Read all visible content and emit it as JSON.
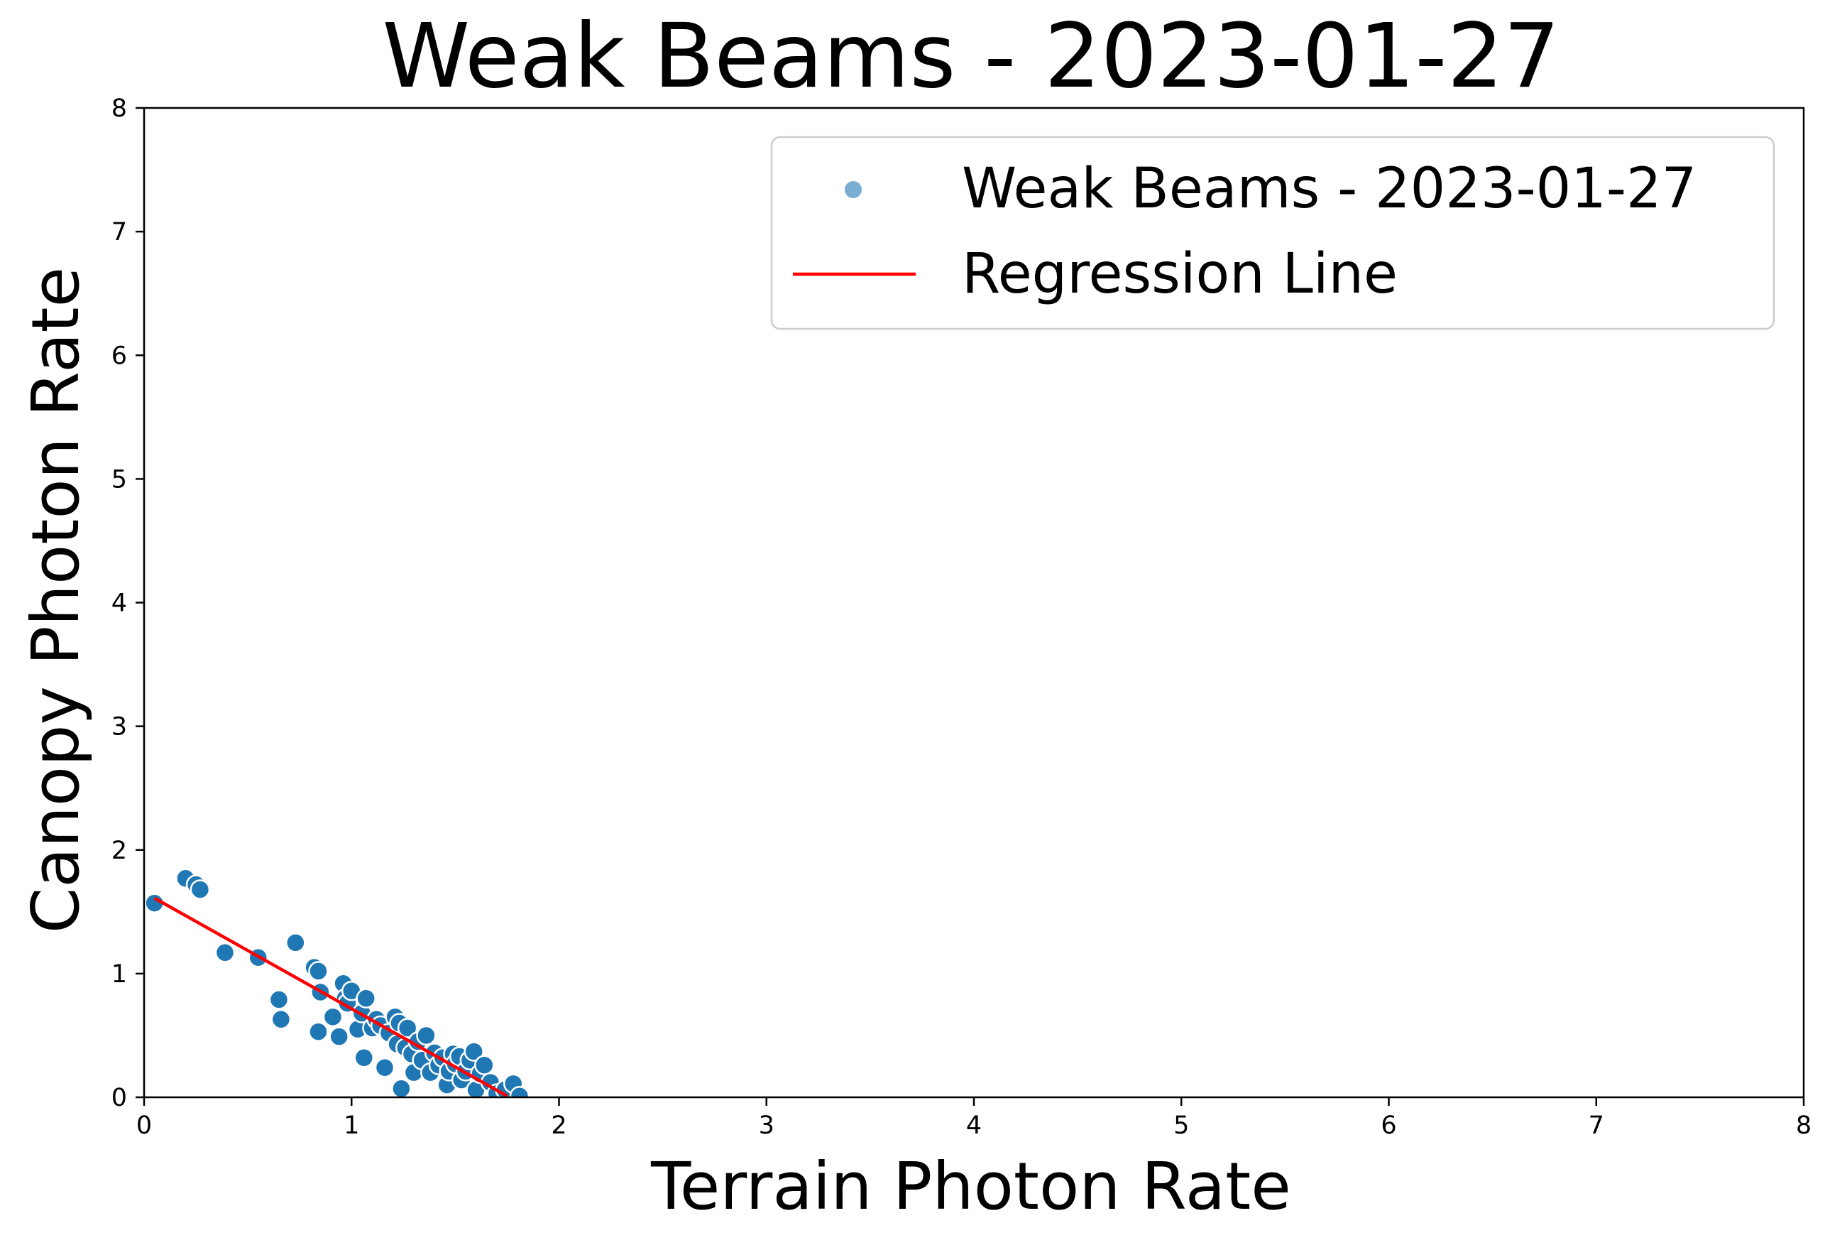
{
  "chart_data": {
    "type": "scatter",
    "title": "Weak Beams - 2023-01-27",
    "xlabel": "Terrain Photon Rate",
    "ylabel": "Canopy Photon Rate",
    "xlim": [
      0,
      8
    ],
    "ylim": [
      0,
      8
    ],
    "xticks": [
      "0",
      "1",
      "2",
      "3",
      "4",
      "5",
      "6",
      "7",
      "8"
    ],
    "yticks": [
      "0",
      "1",
      "2",
      "3",
      "4",
      "5",
      "6",
      "7",
      "8"
    ],
    "grid": false,
    "legend_position": "top-right",
    "colors": {
      "points": "#1f77b4",
      "regression": "#ff0000",
      "point_edge": "#ffffff"
    },
    "series": [
      {
        "name": "Weak Beams - 2023-01-27",
        "kind": "scatter",
        "points": [
          [
            0.05,
            1.57
          ],
          [
            0.2,
            1.77
          ],
          [
            0.25,
            1.72
          ],
          [
            0.27,
            1.68
          ],
          [
            0.39,
            1.17
          ],
          [
            0.55,
            1.13
          ],
          [
            0.65,
            0.79
          ],
          [
            0.66,
            0.63
          ],
          [
            0.73,
            1.25
          ],
          [
            0.82,
            1.05
          ],
          [
            0.84,
            1.02
          ],
          [
            0.84,
            0.53
          ],
          [
            0.85,
            0.85
          ],
          [
            0.91,
            0.65
          ],
          [
            0.94,
            0.49
          ],
          [
            0.96,
            0.92
          ],
          [
            0.97,
            0.8
          ],
          [
            0.98,
            0.76
          ],
          [
            1.0,
            0.86
          ],
          [
            1.03,
            0.55
          ],
          [
            1.05,
            0.68
          ],
          [
            1.06,
            0.32
          ],
          [
            1.07,
            0.8
          ],
          [
            1.1,
            0.56
          ],
          [
            1.12,
            0.63
          ],
          [
            1.14,
            0.58
          ],
          [
            1.16,
            0.24
          ],
          [
            1.18,
            0.52
          ],
          [
            1.21,
            0.65
          ],
          [
            1.22,
            0.43
          ],
          [
            1.23,
            0.6
          ],
          [
            1.24,
            0.07
          ],
          [
            1.26,
            0.4
          ],
          [
            1.27,
            0.56
          ],
          [
            1.29,
            0.35
          ],
          [
            1.3,
            0.2
          ],
          [
            1.32,
            0.45
          ],
          [
            1.34,
            0.3
          ],
          [
            1.36,
            0.5
          ],
          [
            1.38,
            0.2
          ],
          [
            1.4,
            0.36
          ],
          [
            1.42,
            0.26
          ],
          [
            1.44,
            0.32
          ],
          [
            1.46,
            0.1
          ],
          [
            1.47,
            0.21
          ],
          [
            1.49,
            0.35
          ],
          [
            1.5,
            0.27
          ],
          [
            1.52,
            0.33
          ],
          [
            1.53,
            0.14
          ],
          [
            1.55,
            0.21
          ],
          [
            1.57,
            0.3
          ],
          [
            1.59,
            0.37
          ],
          [
            1.6,
            0.06
          ],
          [
            1.62,
            0.19
          ],
          [
            1.64,
            0.26
          ],
          [
            1.67,
            0.12
          ],
          [
            1.7,
            0.03
          ],
          [
            1.74,
            0.06
          ],
          [
            1.78,
            0.11
          ],
          [
            1.81,
            0.01
          ]
        ]
      },
      {
        "name": "Regression Line",
        "kind": "line",
        "points": [
          [
            0.05,
            1.61
          ],
          [
            1.75,
            0.01
          ]
        ]
      }
    ]
  }
}
